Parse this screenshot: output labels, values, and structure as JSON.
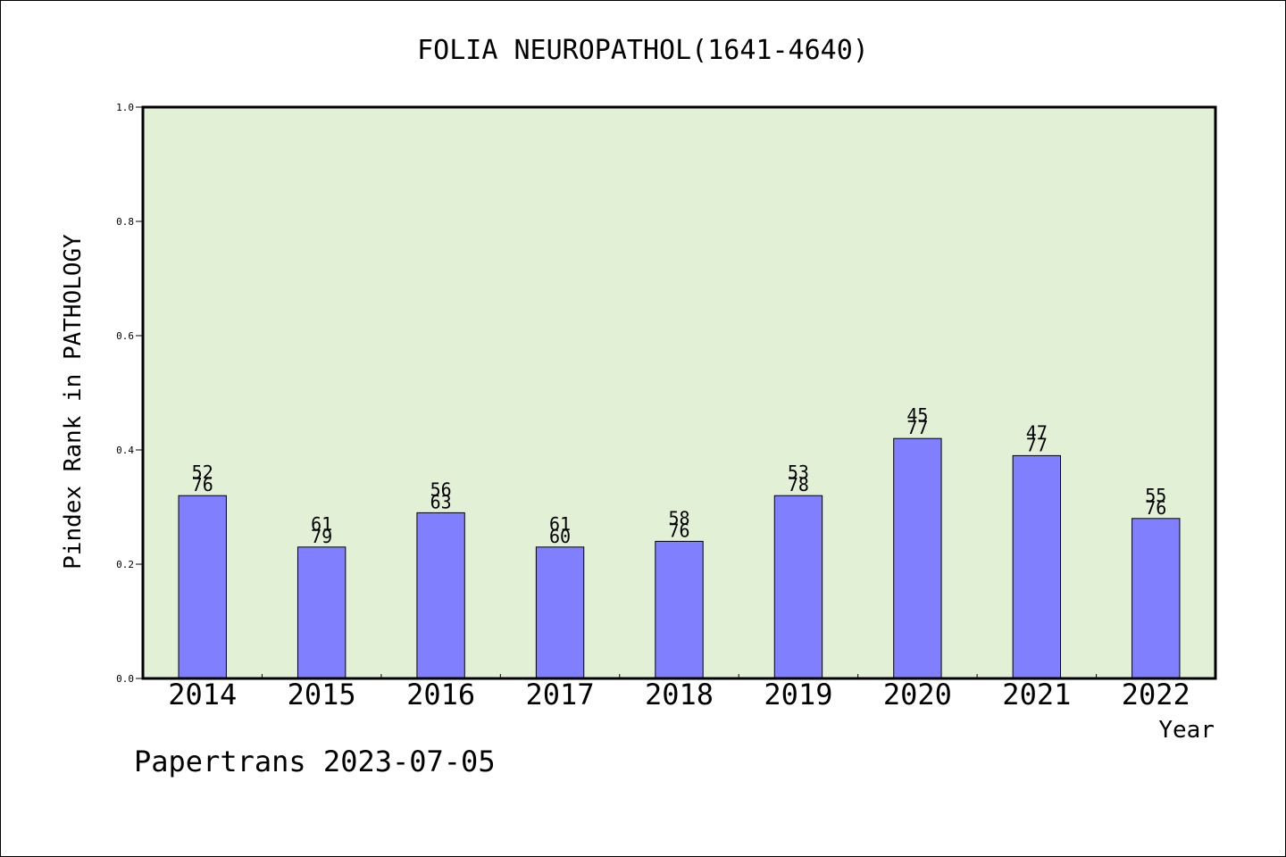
{
  "chart_data": {
    "type": "bar",
    "title": "FOLIA NEUROPATHOL(1641-4640)",
    "xlabel": "Year",
    "ylabel": "Pindex Rank in PATHOLOGY",
    "categories": [
      "2014",
      "2015",
      "2016",
      "2017",
      "2018",
      "2019",
      "2020",
      "2021",
      "2022"
    ],
    "values": [
      0.32,
      0.23,
      0.29,
      0.23,
      0.24,
      0.32,
      0.42,
      0.39,
      0.28
    ],
    "ranks": [
      "52",
      "61",
      "56",
      "61",
      "58",
      "53",
      "45",
      "47",
      "55"
    ],
    "totals": [
      "76",
      "79",
      "63",
      "60",
      "76",
      "78",
      "77",
      "77",
      "76"
    ],
    "ylim": [
      0,
      1.0
    ],
    "yticks": [
      "0.0",
      "0.2",
      "0.4",
      "0.6",
      "0.8",
      "1.0"
    ],
    "grid": false,
    "colors": {
      "bar": "#8080ff",
      "plot_background": "#e2f0d6",
      "axis": "#000000"
    }
  },
  "footer": {
    "text": "Papertrans 2023-07-05"
  }
}
